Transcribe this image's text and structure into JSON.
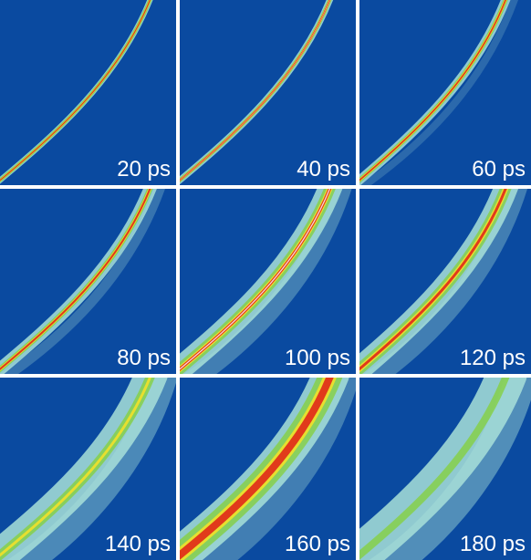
{
  "panels": [
    {
      "label": "20 ps",
      "stage": 0
    },
    {
      "label": "40 ps",
      "stage": 1
    },
    {
      "label": "60 ps",
      "stage": 2
    },
    {
      "label": "80 ps",
      "stage": 3
    },
    {
      "label": "100 ps",
      "stage": 4
    },
    {
      "label": "120 ps",
      "stage": 5
    },
    {
      "label": "140 ps",
      "stage": 6
    },
    {
      "label": "160 ps",
      "stage": 7
    },
    {
      "label": "180 ps",
      "stage": 8
    }
  ],
  "colors": {
    "background": "#0a4aa0",
    "halo": "#a8e0d8",
    "green": "#86d04a",
    "yellow": "#f2e02a",
    "orange": "#f08a1c",
    "red": "#e0281a",
    "white": "#ffffff"
  }
}
